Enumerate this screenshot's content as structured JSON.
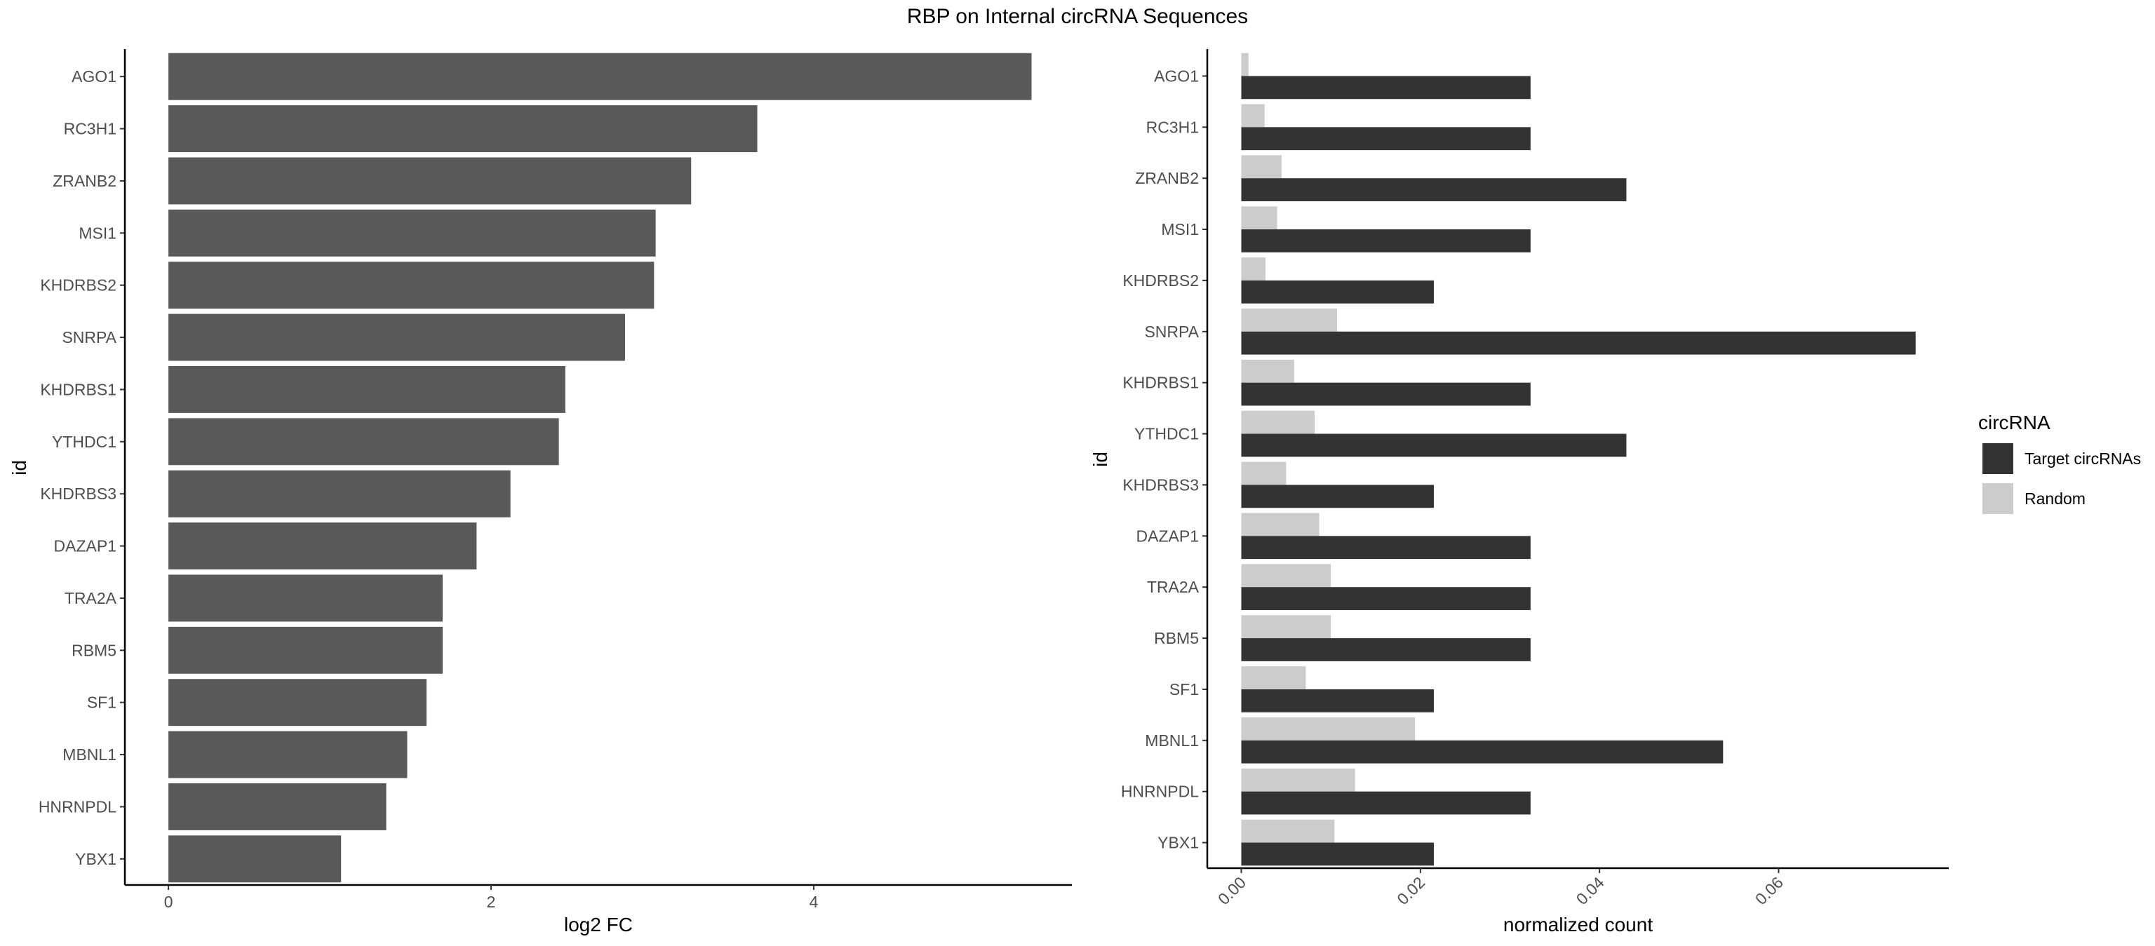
{
  "title": "RBP on Internal circRNA Sequences",
  "chart_data": [
    {
      "type": "bar",
      "orientation": "horizontal",
      "categories": [
        "AGO1",
        "RC3H1",
        "ZRANB2",
        "MSI1",
        "KHDRBS2",
        "SNRPA",
        "KHDRBS1",
        "YTHDC1",
        "KHDRBS3",
        "DAZAP1",
        "TRA2A",
        "RBM5",
        "SF1",
        "MBNL1",
        "HNRNPDL",
        "YBX1"
      ],
      "values": [
        5.35,
        3.65,
        3.24,
        3.02,
        3.01,
        2.83,
        2.46,
        2.42,
        2.12,
        1.91,
        1.7,
        1.7,
        1.6,
        1.48,
        1.35,
        1.07
      ],
      "xlabel": "log2 FC",
      "ylabel": "id",
      "xlim": [
        -0.27,
        5.6
      ],
      "xticks": [
        0,
        2,
        4
      ],
      "bar_color": "#595959",
      "grid": false
    },
    {
      "type": "bar",
      "orientation": "horizontal",
      "grouped": true,
      "categories": [
        "AGO1",
        "RC3H1",
        "ZRANB2",
        "MSI1",
        "KHDRBS2",
        "SNRPA",
        "KHDRBS1",
        "YTHDC1",
        "KHDRBS3",
        "DAZAP1",
        "TRA2A",
        "RBM5",
        "SF1",
        "MBNL1",
        "HNRNPDL",
        "YBX1"
      ],
      "series": [
        {
          "name": "Target circRNAs",
          "color": "#333333",
          "values": [
            0.0323,
            0.0323,
            0.043,
            0.0323,
            0.0215,
            0.0753,
            0.0323,
            0.043,
            0.0215,
            0.0323,
            0.0323,
            0.0323,
            0.0215,
            0.0538,
            0.0323,
            0.0215
          ]
        },
        {
          "name": "Random",
          "color": "#cccccc",
          "values": [
            0.0008,
            0.0026,
            0.0045,
            0.004,
            0.0027,
            0.0107,
            0.0059,
            0.0082,
            0.005,
            0.0087,
            0.01,
            0.01,
            0.0072,
            0.0194,
            0.0127,
            0.0104
          ]
        }
      ],
      "xlabel": "normalized count",
      "ylabel": "id",
      "xlim": [
        -0.0038,
        0.079
      ],
      "xticks": [
        "0.00",
        "0.02",
        "0.04",
        "0.06"
      ],
      "xtick_values": [
        0,
        0.02,
        0.04,
        0.06
      ],
      "legend": {
        "title": "circRNA",
        "position": "right"
      },
      "grid": false
    }
  ]
}
